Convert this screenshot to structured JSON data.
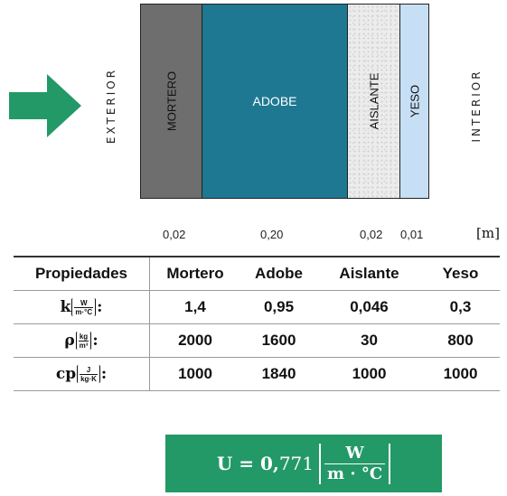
{
  "diagram": {
    "side_exterior": "EXTERIOR",
    "side_interior": "INTERIOR",
    "layers": [
      {
        "label": "MORTERO",
        "thickness": "0,02"
      },
      {
        "label": "ADOBE",
        "thickness": "0,20"
      },
      {
        "label": "AISLANTE",
        "thickness": "0,02"
      },
      {
        "label": "YESO",
        "thickness": "0,01"
      }
    ],
    "unit": "[m]",
    "colors": {
      "arrow": "#239968",
      "mortero": "#6e6e6e",
      "adobe": "#1e7891",
      "aislante": "#ececec",
      "yeso": "#c6dff4"
    }
  },
  "table": {
    "headers": [
      "Propiedades",
      "Mortero",
      "Adobe",
      "Aislante",
      "Yeso"
    ],
    "rows": [
      {
        "symbol": "k",
        "unit_num": "W",
        "unit_den": "m·°C",
        "values": [
          "1,4",
          "0,95",
          "0,046",
          "0,3"
        ]
      },
      {
        "symbol": "ρ",
        "unit_num": "kg",
        "unit_den": "m³",
        "values": [
          "2000",
          "1600",
          "30",
          "800"
        ]
      },
      {
        "symbol": "cp",
        "unit_num": "J",
        "unit_den": "kg·K",
        "values": [
          "1000",
          "1840",
          "1000",
          "1000"
        ]
      }
    ]
  },
  "result": {
    "lhs": "U = 0,",
    "value": "771",
    "unit_num": "W",
    "unit_den": "m · °C"
  }
}
